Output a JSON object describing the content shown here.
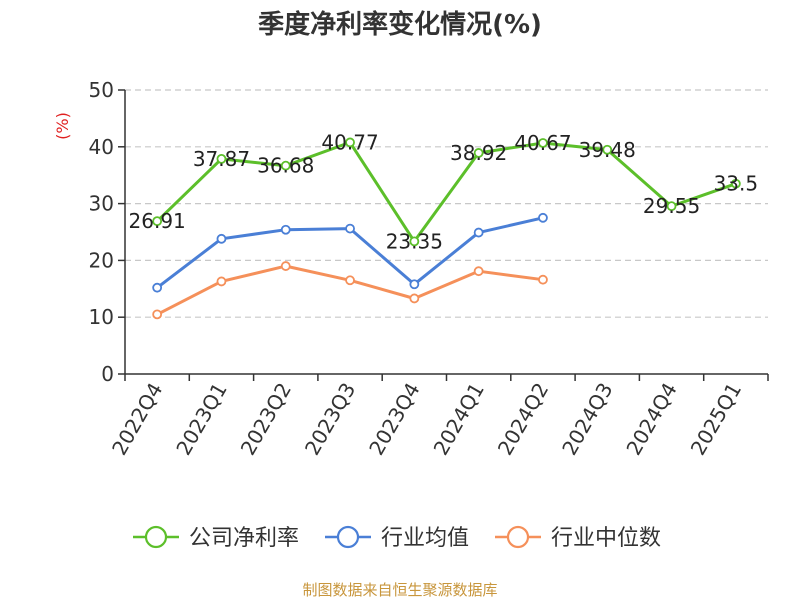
{
  "chart_data": {
    "type": "line",
    "title": "季度净利率变化情况(%)",
    "ylabel": "(%)",
    "ylim": [
      0,
      50
    ],
    "yticks": [
      0,
      10,
      20,
      30,
      40,
      50
    ],
    "grid": true,
    "legend_position": "bottom",
    "categories": [
      "2022Q4",
      "2023Q1",
      "2023Q2",
      "2023Q3",
      "2023Q4",
      "2024Q1",
      "2024Q2",
      "2024Q3",
      "2024Q4",
      "2025Q1"
    ],
    "series": [
      {
        "name": "公司净利率",
        "color": "#5cbf2a",
        "values": [
          26.91,
          37.87,
          36.68,
          40.77,
          23.35,
          38.92,
          40.67,
          39.48,
          29.55,
          33.5
        ],
        "labels": [
          "26.91",
          "37.87",
          "36.68",
          "40.77",
          "23.35",
          "38.92",
          "40.67",
          "39.48",
          "29.55",
          "33.5"
        ]
      },
      {
        "name": "行业均值",
        "color": "#4a7fd6",
        "values": [
          15.2,
          23.8,
          25.4,
          25.6,
          15.8,
          24.9,
          27.5,
          null,
          null,
          null
        ]
      },
      {
        "name": "行业中位数",
        "color": "#f5905a",
        "values": [
          10.5,
          16.3,
          19.0,
          16.5,
          13.3,
          18.1,
          16.6,
          null,
          null,
          null
        ]
      }
    ],
    "source": "制图数据来自恒生聚源数据库"
  },
  "colors": {
    "axis": "#333333",
    "grid": "#c8c8c8",
    "unit": "#e02020",
    "source": "#c8963c"
  }
}
